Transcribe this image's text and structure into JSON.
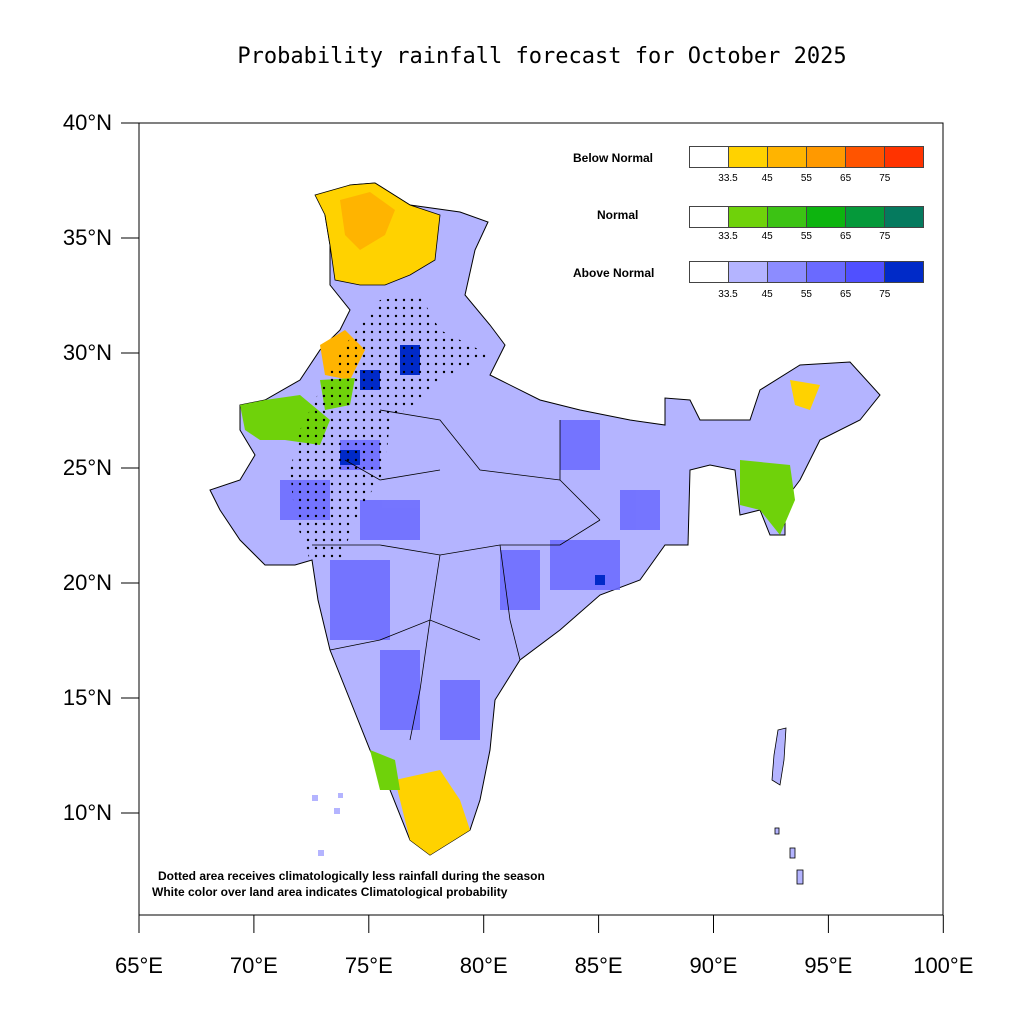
{
  "title": "Probability rainfall forecast for October 2025",
  "map": {
    "lat_labels": [
      "40°N",
      "35°N",
      "30°N",
      "25°N",
      "20°N",
      "15°N",
      "10°N"
    ],
    "lon_labels": [
      "65°E",
      "70°E",
      "75°E",
      "80°E",
      "85°E",
      "90°E",
      "95°E",
      "100°E"
    ],
    "extent": {
      "lon": [
        65,
        100
      ],
      "lat": [
        5.5,
        40
      ]
    },
    "dominant_category": "Above Normal"
  },
  "legend": [
    {
      "label": "Below Normal",
      "colors": [
        "#ffffff",
        "#ffd200",
        "#ffb400",
        "#ff9900",
        "#ff5400",
        "#ff3300"
      ]
    },
    {
      "label": "Normal",
      "colors": [
        "#ffffff",
        "#6fd20a",
        "#3cc314",
        "#0db40f",
        "#05993a",
        "#057a5e"
      ]
    },
    {
      "label": "Above Normal",
      "colors": [
        "#ffffff",
        "#b4b4ff",
        "#8c8cff",
        "#6a6aff",
        "#5050ff",
        "#002ac8"
      ]
    }
  ],
  "legend_ticks": [
    "33.5",
    "45",
    "55",
    "65",
    "75"
  ],
  "notes": [
    "Dotted area receives climatologically less rainfall during the season",
    "White color over land area indicates Climatological probability"
  ]
}
